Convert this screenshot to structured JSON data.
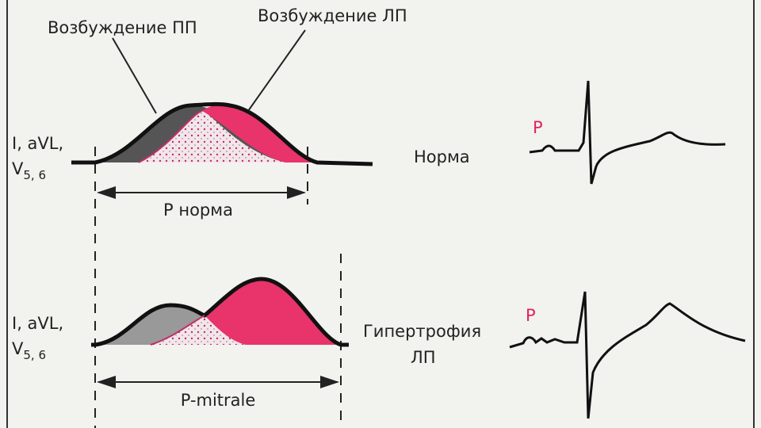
{
  "top": {
    "label_ra": "Возбуждение ПП",
    "label_la": "Возбуждение ЛП",
    "leads": {
      "line1": "I, aVL,",
      "v": "V",
      "sub": "5, 6"
    },
    "interval": "P норма",
    "state": "Норма",
    "wave_label": "P"
  },
  "bottom": {
    "leads": {
      "line1": "I, aVL,",
      "v": "V",
      "sub": "5, 6"
    },
    "interval": "P-mitrale",
    "state_line1": "Гипертрофия",
    "state_line2": "ЛП",
    "wave_label": "P"
  }
}
